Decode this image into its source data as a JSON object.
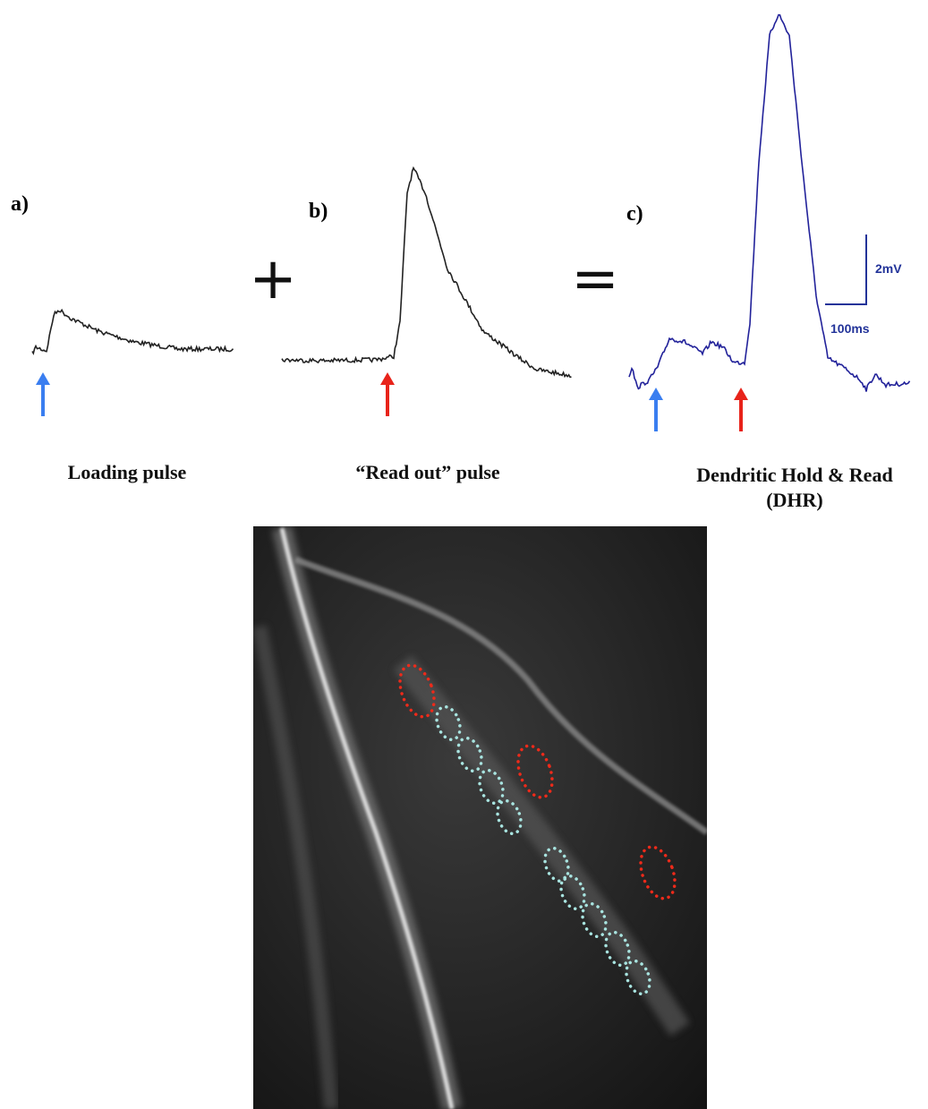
{
  "panels": [
    {
      "label": "a)",
      "caption": "Loading pulse"
    },
    {
      "label": "b)",
      "caption": "“Read out” pulse"
    },
    {
      "label": "c)",
      "caption": "Dendritic Hold & Read",
      "caption_line2": "(DHR)"
    }
  ],
  "operators": [
    "+",
    "="
  ],
  "scale_bar": {
    "voltage": "2mV",
    "time": "100ms"
  }
}
